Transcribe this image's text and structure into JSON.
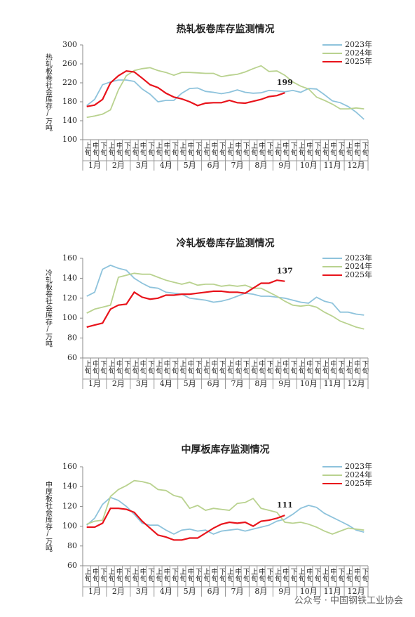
{
  "chart_data": [
    {
      "type": "line",
      "title": "热轧板卷库存监测情况",
      "ylabel": "热轧板卷社会库存/万吨",
      "categories": [
        "上旬",
        "中旬",
        "下旬",
        "上旬",
        "中旬",
        "下旬",
        "上旬",
        "中旬",
        "下旬",
        "上旬",
        "中旬",
        "下旬",
        "上旬",
        "中旬",
        "下旬",
        "上旬",
        "中旬",
        "下旬",
        "上旬",
        "中旬",
        "下旬",
        "上旬",
        "中旬",
        "下旬",
        "上旬",
        "中旬",
        "下旬",
        "上旬",
        "中旬",
        "下旬",
        "上旬",
        "中旬",
        "下旬",
        "上旬",
        "中旬",
        "下旬"
      ],
      "months": [
        "1月",
        "2月",
        "3月",
        "4月",
        "5月",
        "6月",
        "7月",
        "8月",
        "9月",
        "10月",
        "11月",
        "12月"
      ],
      "ylim": [
        100,
        300
      ],
      "yticks": [
        100,
        140,
        180,
        220,
        260,
        300
      ],
      "legend": "upper right",
      "series": [
        {
          "name": "2023年",
          "color": "#8ec3dc",
          "values": [
            172,
            185,
            216,
            222,
            226,
            226,
            223,
            207,
            196,
            180,
            183,
            183,
            198,
            208,
            209,
            202,
            200,
            197,
            200,
            205,
            200,
            198,
            199,
            204,
            203,
            201,
            204,
            200,
            208,
            207,
            195,
            182,
            178,
            170,
            158,
            143
          ]
        },
        {
          "name": "2024年",
          "color": "#b9d28f",
          "values": [
            147,
            150,
            154,
            163,
            205,
            235,
            246,
            250,
            252,
            246,
            242,
            236,
            242,
            242,
            241,
            240,
            240,
            233,
            236,
            238,
            243,
            250,
            256,
            244,
            245,
            236,
            222,
            213,
            207,
            190,
            183,
            175,
            165,
            165,
            167,
            165
          ]
        },
        {
          "name": "2025年",
          "color": "#e8131b",
          "label_last": true,
          "values": [
            170,
            173,
            185,
            220,
            235,
            245,
            243,
            230,
            216,
            210,
            198,
            190,
            186,
            180,
            172,
            177,
            178,
            178,
            183,
            178,
            177,
            181,
            185,
            191,
            193,
            199,
            null,
            null,
            null,
            null,
            null,
            null,
            null,
            null,
            null,
            null
          ]
        }
      ]
    },
    {
      "type": "line",
      "title": "冷轧板卷库存监测情况",
      "ylabel": "冷轧板卷社会库存/万吨",
      "categories": [
        "上旬",
        "中旬",
        "下旬",
        "上旬",
        "中旬",
        "下旬",
        "上旬",
        "中旬",
        "下旬",
        "上旬",
        "中旬",
        "下旬",
        "上旬",
        "中旬",
        "下旬",
        "上旬",
        "中旬",
        "下旬",
        "上旬",
        "中旬",
        "下旬",
        "上旬",
        "中旬",
        "下旬",
        "上旬",
        "中旬",
        "下旬",
        "上旬",
        "中旬",
        "下旬",
        "上旬",
        "中旬",
        "下旬",
        "上旬",
        "中旬",
        "下旬"
      ],
      "months": [
        "1月",
        "2月",
        "3月",
        "4月",
        "5月",
        "6月",
        "7月",
        "8月",
        "9月",
        "10月",
        "11月",
        "12月"
      ],
      "ylim": [
        60,
        160
      ],
      "yticks": [
        60,
        80,
        100,
        120,
        140,
        160
      ],
      "legend": "upper right",
      "series": [
        {
          "name": "2023年",
          "color": "#8ec3dc",
          "values": [
            122,
            126,
            149,
            153,
            150,
            148,
            140,
            135,
            131,
            130,
            126,
            125,
            124,
            120,
            119,
            118,
            116,
            117,
            119,
            122,
            125,
            124,
            122,
            122,
            121,
            120,
            118,
            116,
            115,
            121,
            117,
            115,
            106,
            106,
            104,
            103
          ]
        },
        {
          "name": "2024年",
          "color": "#b9d28f",
          "values": [
            105,
            109,
            111,
            113,
            141,
            143,
            145,
            144,
            144,
            141,
            138,
            136,
            134,
            136,
            133,
            134,
            134,
            132,
            133,
            132,
            133,
            130,
            130,
            126,
            122,
            117,
            113,
            112,
            113,
            111,
            106,
            102,
            97,
            94,
            91,
            89
          ]
        },
        {
          "name": "2025年",
          "color": "#e8131b",
          "label_last": true,
          "values": [
            91,
            93,
            95,
            109,
            113,
            114,
            126,
            121,
            119,
            120,
            123,
            123,
            124,
            124,
            125,
            126,
            127,
            127,
            126,
            126,
            125,
            130,
            135,
            135,
            138,
            137,
            null,
            null,
            null,
            null,
            null,
            null,
            null,
            null,
            null,
            null
          ]
        }
      ]
    },
    {
      "type": "line",
      "title": "中厚板库存监测情况",
      "ylabel": "中厚板社会库存/万吨",
      "categories": [
        "上旬",
        "中旬",
        "下旬",
        "上旬",
        "中旬",
        "下旬",
        "上旬",
        "中旬",
        "下旬",
        "上旬",
        "中旬",
        "下旬",
        "上旬",
        "中旬",
        "下旬",
        "上旬",
        "中旬",
        "下旬",
        "上旬",
        "中旬",
        "下旬",
        "上旬",
        "中旬",
        "下旬",
        "上旬",
        "中旬",
        "下旬",
        "上旬",
        "中旬",
        "下旬",
        "上旬",
        "中旬",
        "下旬",
        "上旬",
        "中旬",
        "下旬"
      ],
      "months": [
        "1月",
        "2月",
        "3月",
        "4月",
        "5月",
        "6月",
        "7月",
        "8月",
        "9月",
        "10月",
        "11月",
        "12月"
      ],
      "ylim": [
        60,
        160
      ],
      "yticks": [
        60,
        80,
        100,
        120,
        140,
        160
      ],
      "legend": "upper right",
      "series": [
        {
          "name": "2023年",
          "color": "#8ec3dc",
          "values": [
            101,
            108,
            122,
            129,
            126,
            120,
            112,
            103,
            101,
            101,
            96,
            92,
            96,
            97,
            95,
            96,
            92,
            95,
            96,
            97,
            95,
            97,
            99,
            101,
            105,
            107,
            112,
            118,
            121,
            119,
            113,
            109,
            105,
            101,
            96,
            94
          ]
        },
        {
          "name": "2024年",
          "color": "#b9d28f",
          "values": [
            102,
            105,
            106,
            130,
            137,
            141,
            146,
            145,
            143,
            137,
            136,
            131,
            129,
            118,
            121,
            116,
            118,
            117,
            116,
            123,
            124,
            128,
            118,
            116,
            114,
            104,
            103,
            104,
            102,
            99,
            95,
            92,
            95,
            98,
            97,
            96
          ]
        },
        {
          "name": "2025年",
          "color": "#e8131b",
          "label_last": true,
          "values": [
            99,
            99,
            103,
            118,
            118,
            117,
            114,
            105,
            98,
            91,
            89,
            86,
            86,
            88,
            88,
            93,
            98,
            102,
            104,
            103,
            104,
            100,
            105,
            106,
            108,
            111,
            null,
            null,
            null,
            null,
            null,
            null,
            null,
            null,
            null,
            null
          ]
        }
      ]
    }
  ],
  "watermark": "公众号 · 中国钢铁工业协会"
}
